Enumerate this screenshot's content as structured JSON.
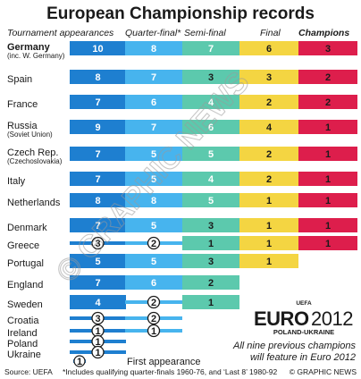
{
  "chart_data": {
    "type": "bar",
    "title": "European Championship records",
    "columns": [
      {
        "key": "appearances",
        "label": "Tournament appearances",
        "color": "#1e7fd0",
        "text": "#ffffff"
      },
      {
        "key": "quarter",
        "label": "Quarter-final*",
        "color": "#47b4ee",
        "text": "#ffffff"
      },
      {
        "key": "semi",
        "label": "Semi-final",
        "color": "#5cc9ad",
        "text": "#ffffff"
      },
      {
        "key": "final",
        "label": "Final",
        "color": "#f4d542",
        "text": "#1a1a1a"
      },
      {
        "key": "champions",
        "label": "Champions",
        "color": "#dd1e4c",
        "text": "#1a1a1a"
      }
    ],
    "countries": [
      {
        "name": "Germany",
        "sub": "(inc. W. Germany)",
        "values": [
          10,
          8,
          7,
          6,
          3
        ],
        "bold": true
      },
      {
        "name": "Spain",
        "values": [
          8,
          7,
          3,
          3,
          2
        ]
      },
      {
        "name": "France",
        "values": [
          7,
          6,
          4,
          2,
          2
        ]
      },
      {
        "name": "Russia",
        "sub": "(Soviet Union)",
        "values": [
          9,
          7,
          6,
          4,
          1
        ]
      },
      {
        "name": "Czech Rep.",
        "sub": "(Czechoslovakia)",
        "values": [
          7,
          5,
          5,
          2,
          1
        ]
      },
      {
        "name": "Italy",
        "values": [
          7,
          5,
          4,
          2,
          1
        ]
      },
      {
        "name": "Netherlands",
        "values": [
          8,
          8,
          5,
          1,
          1
        ]
      },
      {
        "name": "Denmark",
        "values": [
          7,
          5,
          3,
          1,
          1
        ]
      },
      {
        "name": "Greece",
        "values": [
          3,
          2,
          1,
          1,
          1
        ],
        "circled": [
          true,
          true,
          false,
          false,
          false
        ]
      },
      {
        "name": "Portugal",
        "values": [
          5,
          5,
          3,
          1,
          0
        ]
      },
      {
        "name": "England",
        "values": [
          7,
          6,
          2,
          0,
          0
        ]
      },
      {
        "name": "Sweden",
        "values": [
          4,
          2,
          1,
          0,
          0
        ],
        "circled": [
          false,
          true,
          false,
          false,
          false
        ]
      },
      {
        "name": "Croatia",
        "values": [
          3,
          2,
          0,
          0,
          0
        ],
        "circled": [
          true,
          true,
          false,
          false,
          false
        ]
      },
      {
        "name": "Ireland",
        "values": [
          1,
          1,
          0,
          0,
          0
        ],
        "circled": [
          true,
          true,
          false,
          false,
          false
        ]
      },
      {
        "name": "Poland",
        "values": [
          1,
          0,
          0,
          0,
          0
        ],
        "circled": [
          true,
          false,
          false,
          false,
          false
        ]
      },
      {
        "name": "Ukraine",
        "values": [
          1,
          0,
          0,
          0,
          0
        ],
        "circled": [
          true,
          false,
          false,
          false,
          false
        ]
      }
    ],
    "legend": {
      "symbol": "1",
      "label": "First appearance"
    },
    "logo": {
      "top": "UEFA",
      "euro": "EURO",
      "year": "2012",
      "sub": "POLAND-UKRAINE"
    },
    "note": "All nine previous champions will feature in Euro 2012",
    "source": "Source: UEFA",
    "footnote": "*Includes qualifying quarter-finals 1960-76, and ‘Last 8’ 1980-92",
    "credit": "© GRAPHIC NEWS",
    "watermark": "© GRAPHIC NEWS"
  }
}
